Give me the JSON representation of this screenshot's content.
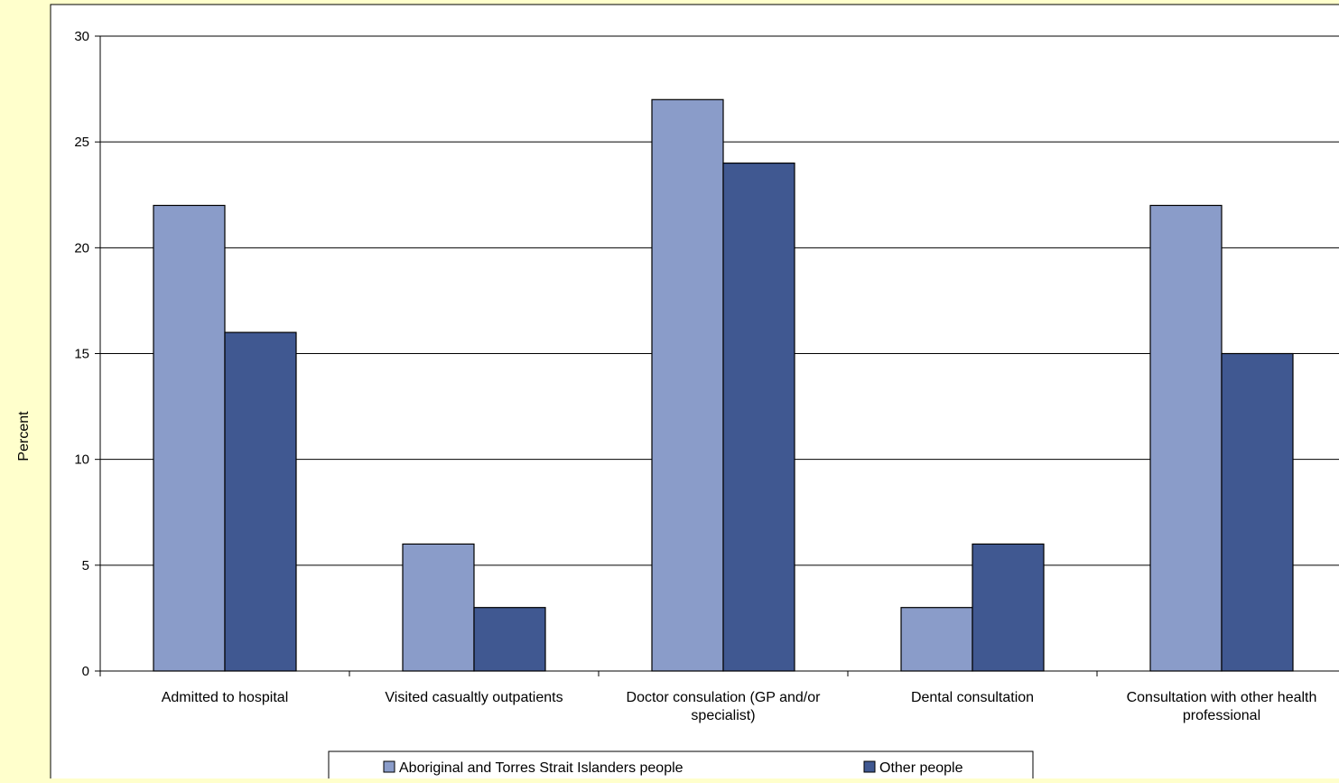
{
  "colors": {
    "page_background": "#ffffcc",
    "plot_background": "#ffffff",
    "series_aboriginal": "#8a9cc9",
    "series_other": "#405891"
  },
  "chart_data": {
    "type": "bar",
    "ylabel": "Percent",
    "xlabel": "",
    "ylim": [
      0,
      30
    ],
    "yticks": [
      0,
      5,
      10,
      15,
      20,
      25,
      30
    ],
    "grid": true,
    "legend_position": "bottom",
    "categories": [
      [
        "Admitted to hospital"
      ],
      [
        "Visited casualtly outpatients"
      ],
      [
        "Doctor consulation (GP and/or",
        "specialist)"
      ],
      [
        "Dental consultation"
      ],
      [
        "Consultation with other health",
        "professional"
      ]
    ],
    "series": [
      {
        "name": "Aboriginal and Torres Strait Islanders people",
        "values": [
          22,
          6,
          27,
          3,
          22
        ]
      },
      {
        "name": "Other people",
        "values": [
          16,
          3,
          24,
          6,
          15
        ]
      }
    ]
  }
}
